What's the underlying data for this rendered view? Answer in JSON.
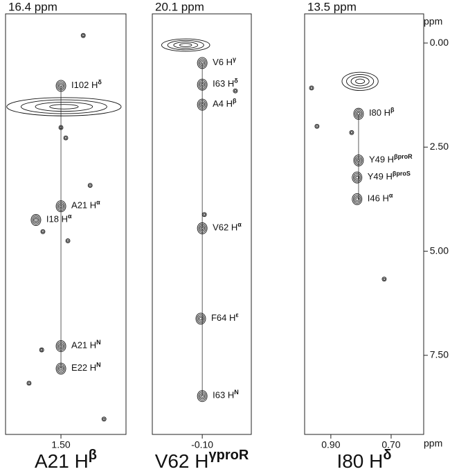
{
  "chart_data": {
    "type": "nmr-strips",
    "ylabel": "ppm",
    "xlabel": "ppm",
    "ylim": [
      -0.7,
      9.4
    ],
    "yticks": [
      {
        "value": 0,
        "label": "0.00"
      },
      {
        "value": 2.5,
        "label": "2.50"
      },
      {
        "value": 5,
        "label": "5.00"
      },
      {
        "value": 7.5,
        "label": "7.50"
      }
    ],
    "panels": [
      {
        "title": "16.4 ppm",
        "xlim": [
          1.684,
          1.284
        ],
        "xticks": [
          {
            "value": 1.5,
            "label": "1.50"
          }
        ],
        "label": {
          "text": "A21 H",
          "sup": "β"
        },
        "trace_x": 1.5,
        "peaks": [
          {
            "x": 1.5,
            "y": 1.03,
            "label": {
              "text": "I102 H",
              "sup": "δ"
            }
          },
          {
            "x": 1.49,
            "y": 1.53,
            "wx": 0.19,
            "wy": 0.22
          },
          {
            "x": 1.5,
            "y": 2.03
          },
          {
            "x": 1.484,
            "y": 2.28
          },
          {
            "x": 1.5,
            "y": 3.92,
            "label": {
              "text": "A21 H",
              "sup": "α"
            }
          },
          {
            "x": 1.583,
            "y": 4.25,
            "label": {
              "text": "I18 H",
              "sup": "α"
            }
          },
          {
            "x": 1.5,
            "y": 7.28,
            "label": {
              "text": "A21 H",
              "sup": "N"
            }
          },
          {
            "x": 1.564,
            "y": 7.37
          },
          {
            "x": 1.5,
            "y": 7.82,
            "label": {
              "text": "E22 H",
              "sup": "N"
            }
          },
          {
            "x": 1.606,
            "y": 8.17
          },
          {
            "x": 1.426,
            "y": -0.18
          },
          {
            "x": 1.403,
            "y": 3.42
          },
          {
            "x": 1.477,
            "y": 4.75
          },
          {
            "x": 1.56,
            "y": 4.53
          },
          {
            "x": 1.357,
            "y": 9.03
          }
        ]
      },
      {
        "title": "20.1 ppm",
        "xlim": [
          0.066,
          -0.263
        ],
        "xticks": [
          {
            "value": -0.1,
            "label": "-0.10"
          }
        ],
        "label": {
          "text": "V62 H",
          "sup": "γproR"
        },
        "trace_x": -0.1,
        "peaks": [
          {
            "x": -0.045,
            "y": 0.05,
            "wx": 0.08,
            "wy": 0.15
          },
          {
            "x": -0.1,
            "y": 0.48,
            "label": {
              "text": "V6 H",
              "sup": "γ"
            }
          },
          {
            "x": -0.1,
            "y": 1.0,
            "label": {
              "text": "I63 H",
              "sup": "δ"
            }
          },
          {
            "x": -0.1,
            "y": 1.48,
            "label": {
              "text": "A4 H",
              "sup": "β"
            }
          },
          {
            "x": -0.1,
            "y": 4.45,
            "label": {
              "text": "V62 H",
              "sup": "α"
            }
          },
          {
            "x": -0.095,
            "y": 6.62,
            "label": {
              "text": "F64 H",
              "sup": "ε"
            }
          },
          {
            "x": -0.1,
            "y": 8.48,
            "label": {
              "text": "I63 H",
              "sup": "N"
            }
          },
          {
            "x": -0.21,
            "y": 1.15
          },
          {
            "x": -0.107,
            "y": 4.12
          }
        ]
      },
      {
        "title": "13.5 ppm",
        "xlim": [
          0.987,
          0.592
        ],
        "xticks": [
          {
            "value": 0.9,
            "label": "0.90"
          },
          {
            "value": 0.7,
            "label": "0.70"
          }
        ],
        "label": {
          "text": "I80 H",
          "sup": "δ"
        },
        "trace_x": 0.808,
        "peaks": [
          {
            "x": 0.803,
            "y": 0.92,
            "wx": 0.06,
            "wy": 0.22
          },
          {
            "x": 0.808,
            "y": 1.7,
            "label": {
              "text": "I80 H",
              "sup": "β"
            }
          },
          {
            "x": 0.808,
            "y": 2.82,
            "label": {
              "text": "Y49 H",
              "sup": "βproR"
            }
          },
          {
            "x": 0.813,
            "y": 3.23,
            "label": {
              "text": "Y49 H",
              "sup": "βproS"
            }
          },
          {
            "x": 0.813,
            "y": 3.75,
            "label": {
              "text": "I46 H",
              "sup": "α"
            }
          },
          {
            "x": 0.946,
            "y": 2.0
          },
          {
            "x": 0.831,
            "y": 2.15
          },
          {
            "x": 0.723,
            "y": 5.67
          },
          {
            "x": 0.964,
            "y": 1.08
          }
        ]
      }
    ]
  }
}
